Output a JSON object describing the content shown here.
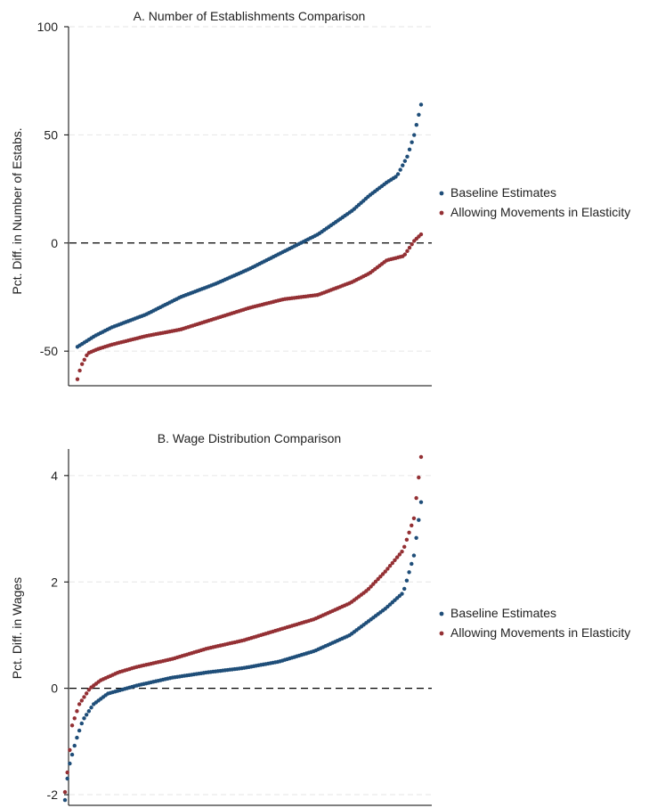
{
  "chart_data": [
    {
      "id": "panel-a",
      "type": "scatter",
      "title": "A. Number of Establishments Comparison",
      "ylabel": "Pct. Diff. in Number of Estabs.",
      "xlabel": "",
      "ylim": [
        -66,
        100
      ],
      "yticks": [
        -50,
        0,
        50,
        100
      ],
      "grid": true,
      "reference_line": 0,
      "legend_position": "right",
      "n_points": 150,
      "series": [
        {
          "name": "Baseline Estimates",
          "color": "#1f4e79",
          "curve_x": [
            0,
            0.02,
            0.05,
            0.1,
            0.2,
            0.3,
            0.4,
            0.5,
            0.6,
            0.7,
            0.8,
            0.85,
            0.9,
            0.93,
            0.96,
            0.98,
            1.0
          ],
          "curve_y": [
            -48,
            -46,
            -43,
            -39,
            -33,
            -25,
            -19,
            -12,
            -4,
            4,
            15,
            22,
            28,
            31,
            40,
            50,
            64
          ]
        },
        {
          "name": "Allowing Movements in Elasticity",
          "color": "#943034",
          "curve_x": [
            0,
            0.01,
            0.03,
            0.06,
            0.1,
            0.2,
            0.3,
            0.4,
            0.5,
            0.6,
            0.7,
            0.8,
            0.85,
            0.9,
            0.95,
            0.98,
            1.0
          ],
          "curve_y": [
            -63,
            -57,
            -51,
            -49,
            -47,
            -43,
            -40,
            -35,
            -30,
            -26,
            -24,
            -18,
            -14,
            -8,
            -6,
            1,
            4
          ]
        }
      ]
    },
    {
      "id": "panel-b",
      "type": "scatter",
      "title": "B. Wage Distribution Comparison",
      "ylabel": "Pct. Diff. in Wages",
      "xlabel": "",
      "ylim": [
        -2.2,
        4.5
      ],
      "yticks": [
        -2,
        0,
        2,
        4
      ],
      "grid": true,
      "reference_line": 0,
      "legend_position": "right",
      "n_points": 150,
      "series": [
        {
          "name": "Baseline Estimates",
          "color": "#1f4e79",
          "curve_x": [
            0,
            0.01,
            0.03,
            0.05,
            0.08,
            0.12,
            0.2,
            0.3,
            0.4,
            0.5,
            0.6,
            0.7,
            0.8,
            0.85,
            0.9,
            0.95,
            0.98,
            1.0
          ],
          "curve_y": [
            -2.1,
            -1.5,
            -1.0,
            -0.6,
            -0.3,
            -0.1,
            0.05,
            0.2,
            0.3,
            0.38,
            0.5,
            0.7,
            1.0,
            1.25,
            1.5,
            1.8,
            2.5,
            3.5
          ]
        },
        {
          "name": "Allowing Movements in Elasticity",
          "color": "#943034",
          "curve_x": [
            0,
            0.01,
            0.02,
            0.04,
            0.07,
            0.1,
            0.15,
            0.2,
            0.3,
            0.4,
            0.5,
            0.6,
            0.7,
            0.8,
            0.85,
            0.9,
            0.95,
            0.98,
            1.0
          ],
          "curve_y": [
            -1.95,
            -1.4,
            -0.7,
            -0.3,
            0.0,
            0.15,
            0.3,
            0.4,
            0.55,
            0.75,
            0.9,
            1.1,
            1.3,
            1.6,
            1.85,
            2.2,
            2.6,
            3.2,
            4.35
          ]
        }
      ]
    }
  ]
}
